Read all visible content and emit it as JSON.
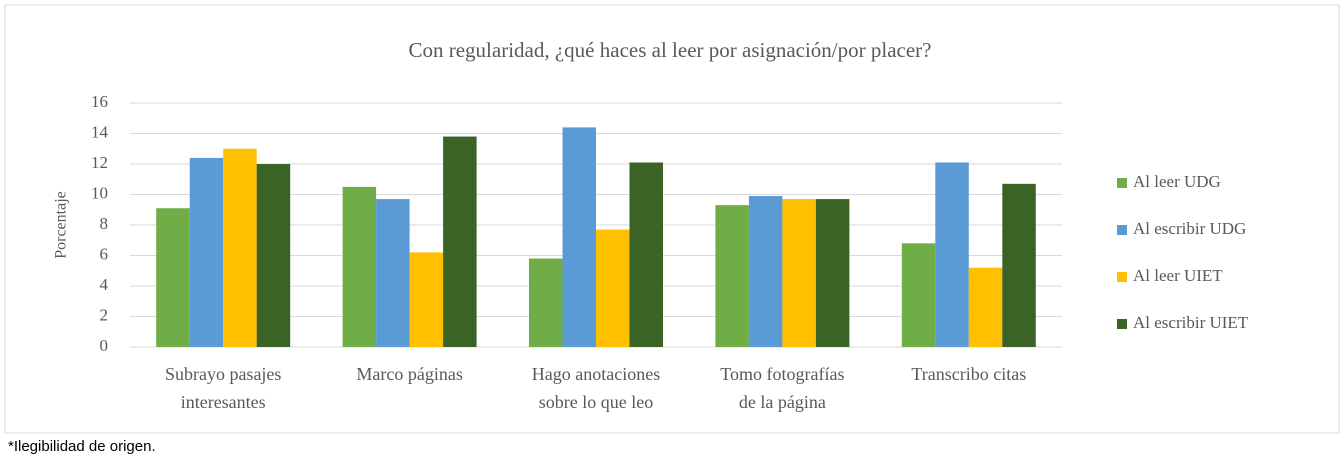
{
  "chart_data": {
    "type": "bar",
    "title": "Con regularidad, ¿qué haces al leer por asignación/por placer?",
    "y_label": "Porcentaje",
    "categories": [
      [
        "Subrayo pasajes",
        "interesantes"
      ],
      [
        "Marco páginas"
      ],
      [
        "Hago anotaciones",
        "sobre lo que leo"
      ],
      [
        "Tomo fotografías",
        "de la página"
      ],
      [
        "Transcribo citas"
      ]
    ],
    "series": [
      {
        "name": "Al leer UDG",
        "color": "#70ad47",
        "values": [
          9.1,
          10.5,
          5.8,
          9.3,
          6.8
        ]
      },
      {
        "name": "Al escribir UDG",
        "color": "#5b9bd5",
        "values": [
          12.4,
          9.7,
          14.4,
          9.9,
          12.1
        ]
      },
      {
        "name": "Al leer UIET",
        "color": "#ffc000",
        "values": [
          13,
          6.2,
          7.7,
          9.7,
          5.2
        ]
      },
      {
        "name": "Al escribir UIET",
        "color": "#3b6326",
        "values": [
          12,
          13.8,
          12.1,
          9.7,
          10.7
        ]
      }
    ],
    "ylim": [
      0,
      16
    ],
    "yticks": [
      0,
      2,
      4,
      6,
      8,
      10,
      12,
      14,
      16
    ],
    "grid": true,
    "legend": "right"
  },
  "footnote": "*Ilegibilidad de origen."
}
